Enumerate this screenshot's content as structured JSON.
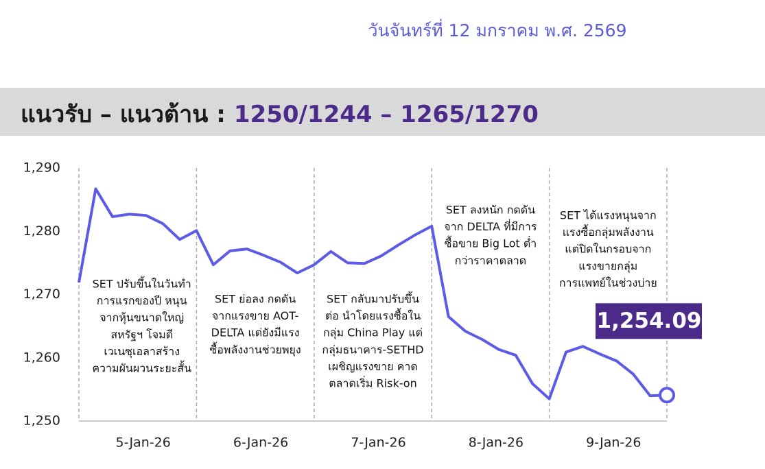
{
  "header": {
    "date": "วันจันทร์ที่ 12 มกราคม พ.ศ. 2569",
    "title": "แนวรับ – แนวต้าน :",
    "levels": "1250/1244 – 1265/1270"
  },
  "chart_data": {
    "type": "line",
    "day_labels": [
      "5-Jan-26",
      "6-Jan-26",
      "7-Jan-26",
      "8-Jan-26",
      "9-Jan-26"
    ],
    "series": [
      {
        "name": "SET",
        "color": "#5b5be6",
        "values": [
          1271.9,
          1286.7,
          1282.3,
          1282.7,
          1282.5,
          1281.2,
          1278.7,
          1280.1,
          1274.7,
          1276.9,
          1277.2,
          1276.2,
          1275.1,
          1273.4,
          1274.7,
          1276.8,
          1275.0,
          1274.9,
          1276.1,
          1277.8,
          1279.4,
          1280.8,
          1266.5,
          1264.2,
          1262.9,
          1261.3,
          1260.4,
          1255.9,
          1253.5,
          1260.9,
          1261.8,
          1260.6,
          1259.5,
          1257.4,
          1254.0,
          1254.09
        ],
        "value_labels": [
          null,
          null,
          null,
          null,
          null,
          null,
          null,
          null,
          null,
          null,
          null,
          null,
          null,
          null,
          null,
          null,
          null,
          null,
          null,
          null,
          null,
          null,
          null,
          null,
          null,
          null,
          null,
          null,
          null,
          null,
          null,
          null,
          null,
          null,
          null,
          "1,254.09"
        ]
      }
    ],
    "ylim": [
      1250,
      1290
    ],
    "yticks": [
      {
        "value": 1250,
        "label": "1,250"
      },
      {
        "value": 1260,
        "label": "1,260"
      },
      {
        "value": 1270,
        "label": "1,270"
      },
      {
        "value": 1280,
        "label": "1,280"
      },
      {
        "value": 1290,
        "label": "1,290"
      }
    ],
    "annotations": [
      {
        "lines": [
          "SET ปรับขึ้นในวันทำ",
          "การแรกของปี หนุน",
          "จากหุ้นขนาดใหญ่",
          "สหรัฐฯ โจมตี",
          "เวเนซุเอลาสร้าง",
          "ความผันผวนระยะสั้น"
        ]
      },
      {
        "lines": [
          "SET ย่อลง กดดัน",
          "จากแรงขาย AOT-",
          "DELTA แต่ยังมีแรง",
          "ซื้อพลังงานช่วยพยุง"
        ]
      },
      {
        "lines": [
          "SET กลับมาปรับขึ้น",
          "ต่อ นำโดยแรงซื้อใน",
          "กลุ่ม China Play แต่",
          "กลุ่มธนาคาร-SETHD",
          "เผชิญแรงขาย คาด",
          "ตลาดเริ่ม Risk-on"
        ]
      },
      {
        "lines": [
          "SET ลงหนัก กดดัน",
          "จาก DELTA ที่มีการ",
          "ซื้อขาย Big Lot ต่ำ",
          "กว่าราคาตลาด"
        ]
      },
      {
        "lines": [
          "SET ได้แรงหนุนจาก",
          "แรงซื้อกลุ่มพลังงาน",
          "แต่ปิดในกรอบจาก",
          "แรงขายกลุ่ม",
          "การแพทย์ในช่วงบ่าย"
        ]
      }
    ]
  }
}
